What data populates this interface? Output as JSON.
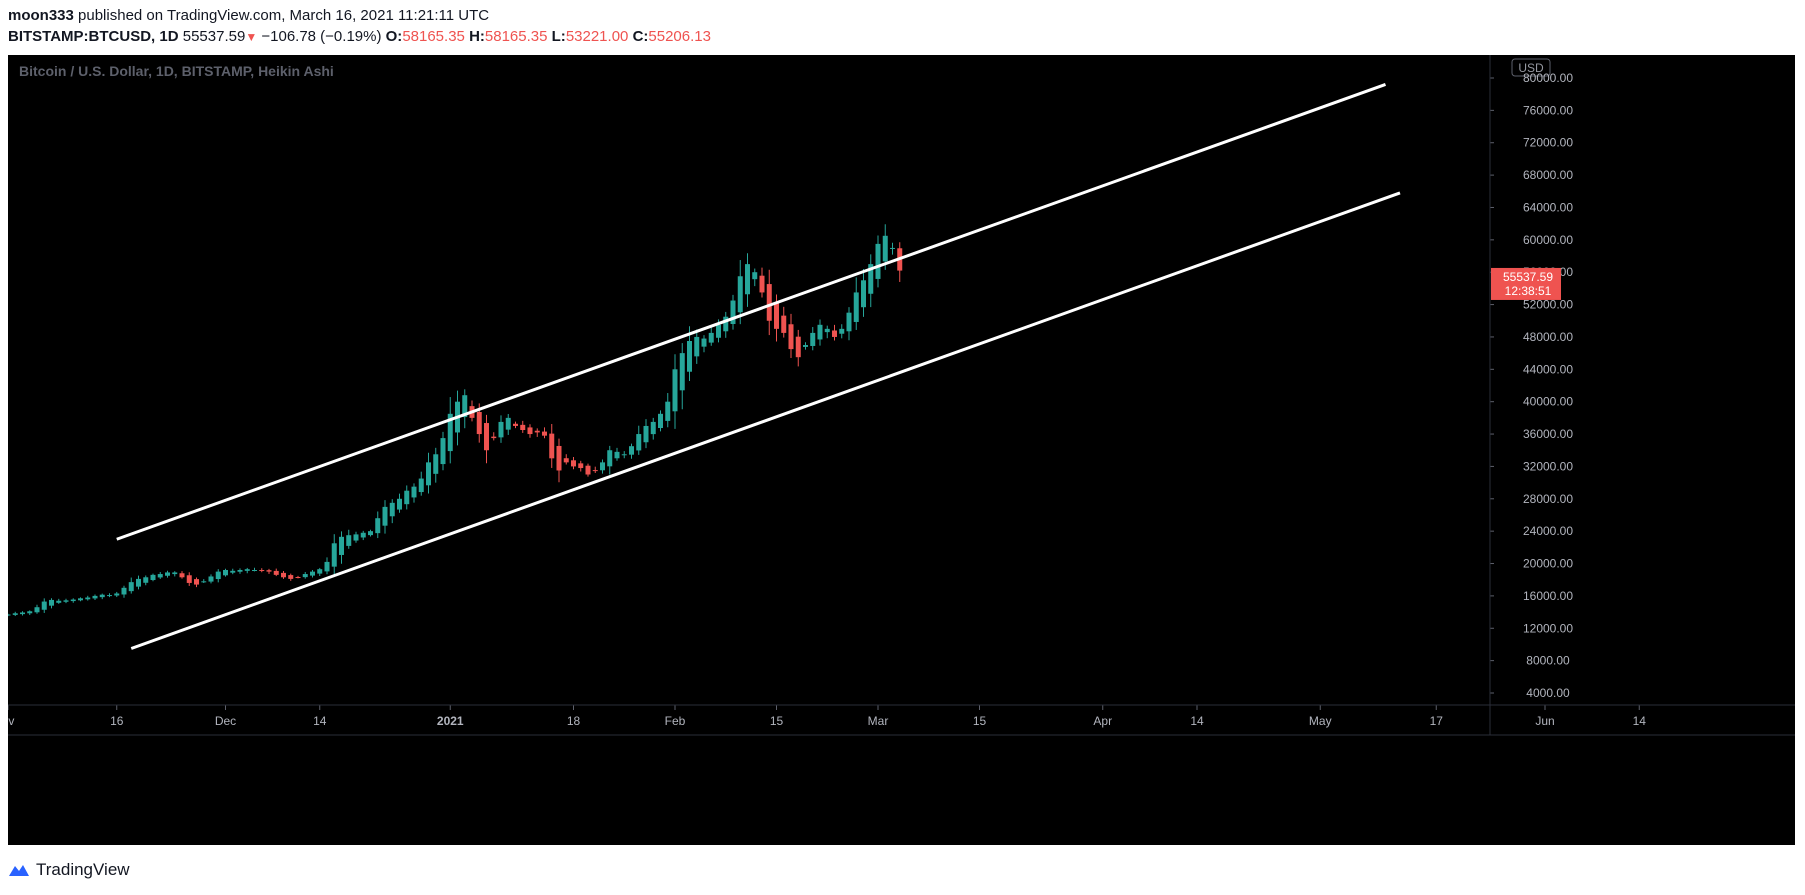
{
  "header": {
    "author": "moon333",
    "published_text": "published on TradingView.com, March 16, 2021 11:21:11 UTC",
    "symbol": "BITSTAMP:BTCUSD, 1D",
    "last": "55537.59",
    "change": "−106.78 (−0.19%)",
    "o_label": "O:",
    "o_value": "58165.35",
    "h_label": "H:",
    "h_value": "58165.35",
    "l_label": "L:",
    "l_value": "53221.00",
    "c_label": "C:",
    "c_value": "55206.13"
  },
  "footer": {
    "brand": "TradingView"
  },
  "colors": {
    "up": "#26a69a",
    "down": "#ef5350",
    "background": "#000000",
    "channel": "#ffffff"
  },
  "chart_data": {
    "type": "candlestick",
    "title": "Bitcoin / U.S. Dollar, 1D, BITSTAMP, Heikin Ashi",
    "currency_badge": "USD",
    "y_ticks": [
      "80000.00",
      "76000.00",
      "72000.00",
      "68000.00",
      "64000.00",
      "60000.00",
      "56000.00",
      "52000.00",
      "48000.00",
      "44000.00",
      "40000.00",
      "36000.00",
      "32000.00",
      "28000.00",
      "24000.00",
      "20000.00",
      "16000.00",
      "12000.00",
      "8000.00",
      "4000.00"
    ],
    "ylim": [
      2500,
      82000
    ],
    "price_label": {
      "value": "55537.59",
      "countdown": "12:38:51",
      "price": 55537.59
    },
    "x_ticks": [
      {
        "label": "ov",
        "date": "2020-11-01"
      },
      {
        "label": "16",
        "date": "2020-11-16"
      },
      {
        "label": "Dec",
        "date": "2020-12-01"
      },
      {
        "label": "14",
        "date": "2020-12-14"
      },
      {
        "label": "2021",
        "date": "2021-01-01",
        "bold": true
      },
      {
        "label": "18",
        "date": "2021-01-18"
      },
      {
        "label": "Feb",
        "date": "2021-02-01"
      },
      {
        "label": "15",
        "date": "2021-02-15"
      },
      {
        "label": "Mar",
        "date": "2021-03-01"
      },
      {
        "label": "15",
        "date": "2021-03-15"
      },
      {
        "label": "Apr",
        "date": "2021-04-01"
      },
      {
        "label": "14",
        "date": "2021-04-14"
      },
      {
        "label": "May",
        "date": "2021-05-01"
      },
      {
        "label": "17",
        "date": "2021-05-17"
      },
      {
        "label": "Jun",
        "date": "2021-06-01"
      },
      {
        "label": "14",
        "date": "2021-06-14"
      }
    ],
    "channel_lines": [
      {
        "start": {
          "date": "2020-11-16",
          "price": 23000
        },
        "end": {
          "date": "2021-05-10",
          "price": 79200
        }
      },
      {
        "start": {
          "date": "2020-11-18",
          "price": 9500
        },
        "end": {
          "date": "2021-05-12",
          "price": 65800
        }
      }
    ],
    "start_date": "2020-11-01",
    "closes": [
      13700,
      13850,
      13950,
      14100,
      14600,
      15300,
      15500,
      15400,
      15450,
      15550,
      15700,
      15800,
      16000,
      16150,
      16100,
      16300,
      17000,
      17700,
      18100,
      18300,
      18600,
      18700,
      18900,
      18900,
      18300,
      17600,
      17400,
      17800,
      18400,
      19000,
      19200,
      19100,
      19200,
      19300,
      19200,
      19150,
      19000,
      18600,
      18300,
      18100,
      18300,
      18700,
      19000,
      19300,
      20200,
      22500,
      23300,
      23500,
      23600,
      23800,
      24000,
      25600,
      27000,
      27500,
      28000,
      29000,
      29500,
      30500,
      32500,
      33500,
      35500,
      38500,
      40000,
      40800,
      38000,
      36000,
      34000,
      35500,
      37500,
      38000,
      37000,
      36500,
      36000,
      36200,
      35800,
      33000,
      31500,
      32500,
      32000,
      31800,
      31000,
      31500,
      32500,
      34000,
      33800,
      33500,
      34500,
      36000,
      37000,
      37500,
      38500,
      40000,
      44000,
      46000,
      47500,
      48000,
      47800,
      48500,
      49500,
      50500,
      52500,
      55500,
      57000,
      56000,
      53500,
      50000,
      49000,
      48500,
      46500,
      45500,
      47000,
      48500,
      49500,
      49000,
      48000,
      49000,
      51000,
      53500,
      55000,
      57000,
      59500,
      60500,
      59000,
      56200
    ]
  }
}
